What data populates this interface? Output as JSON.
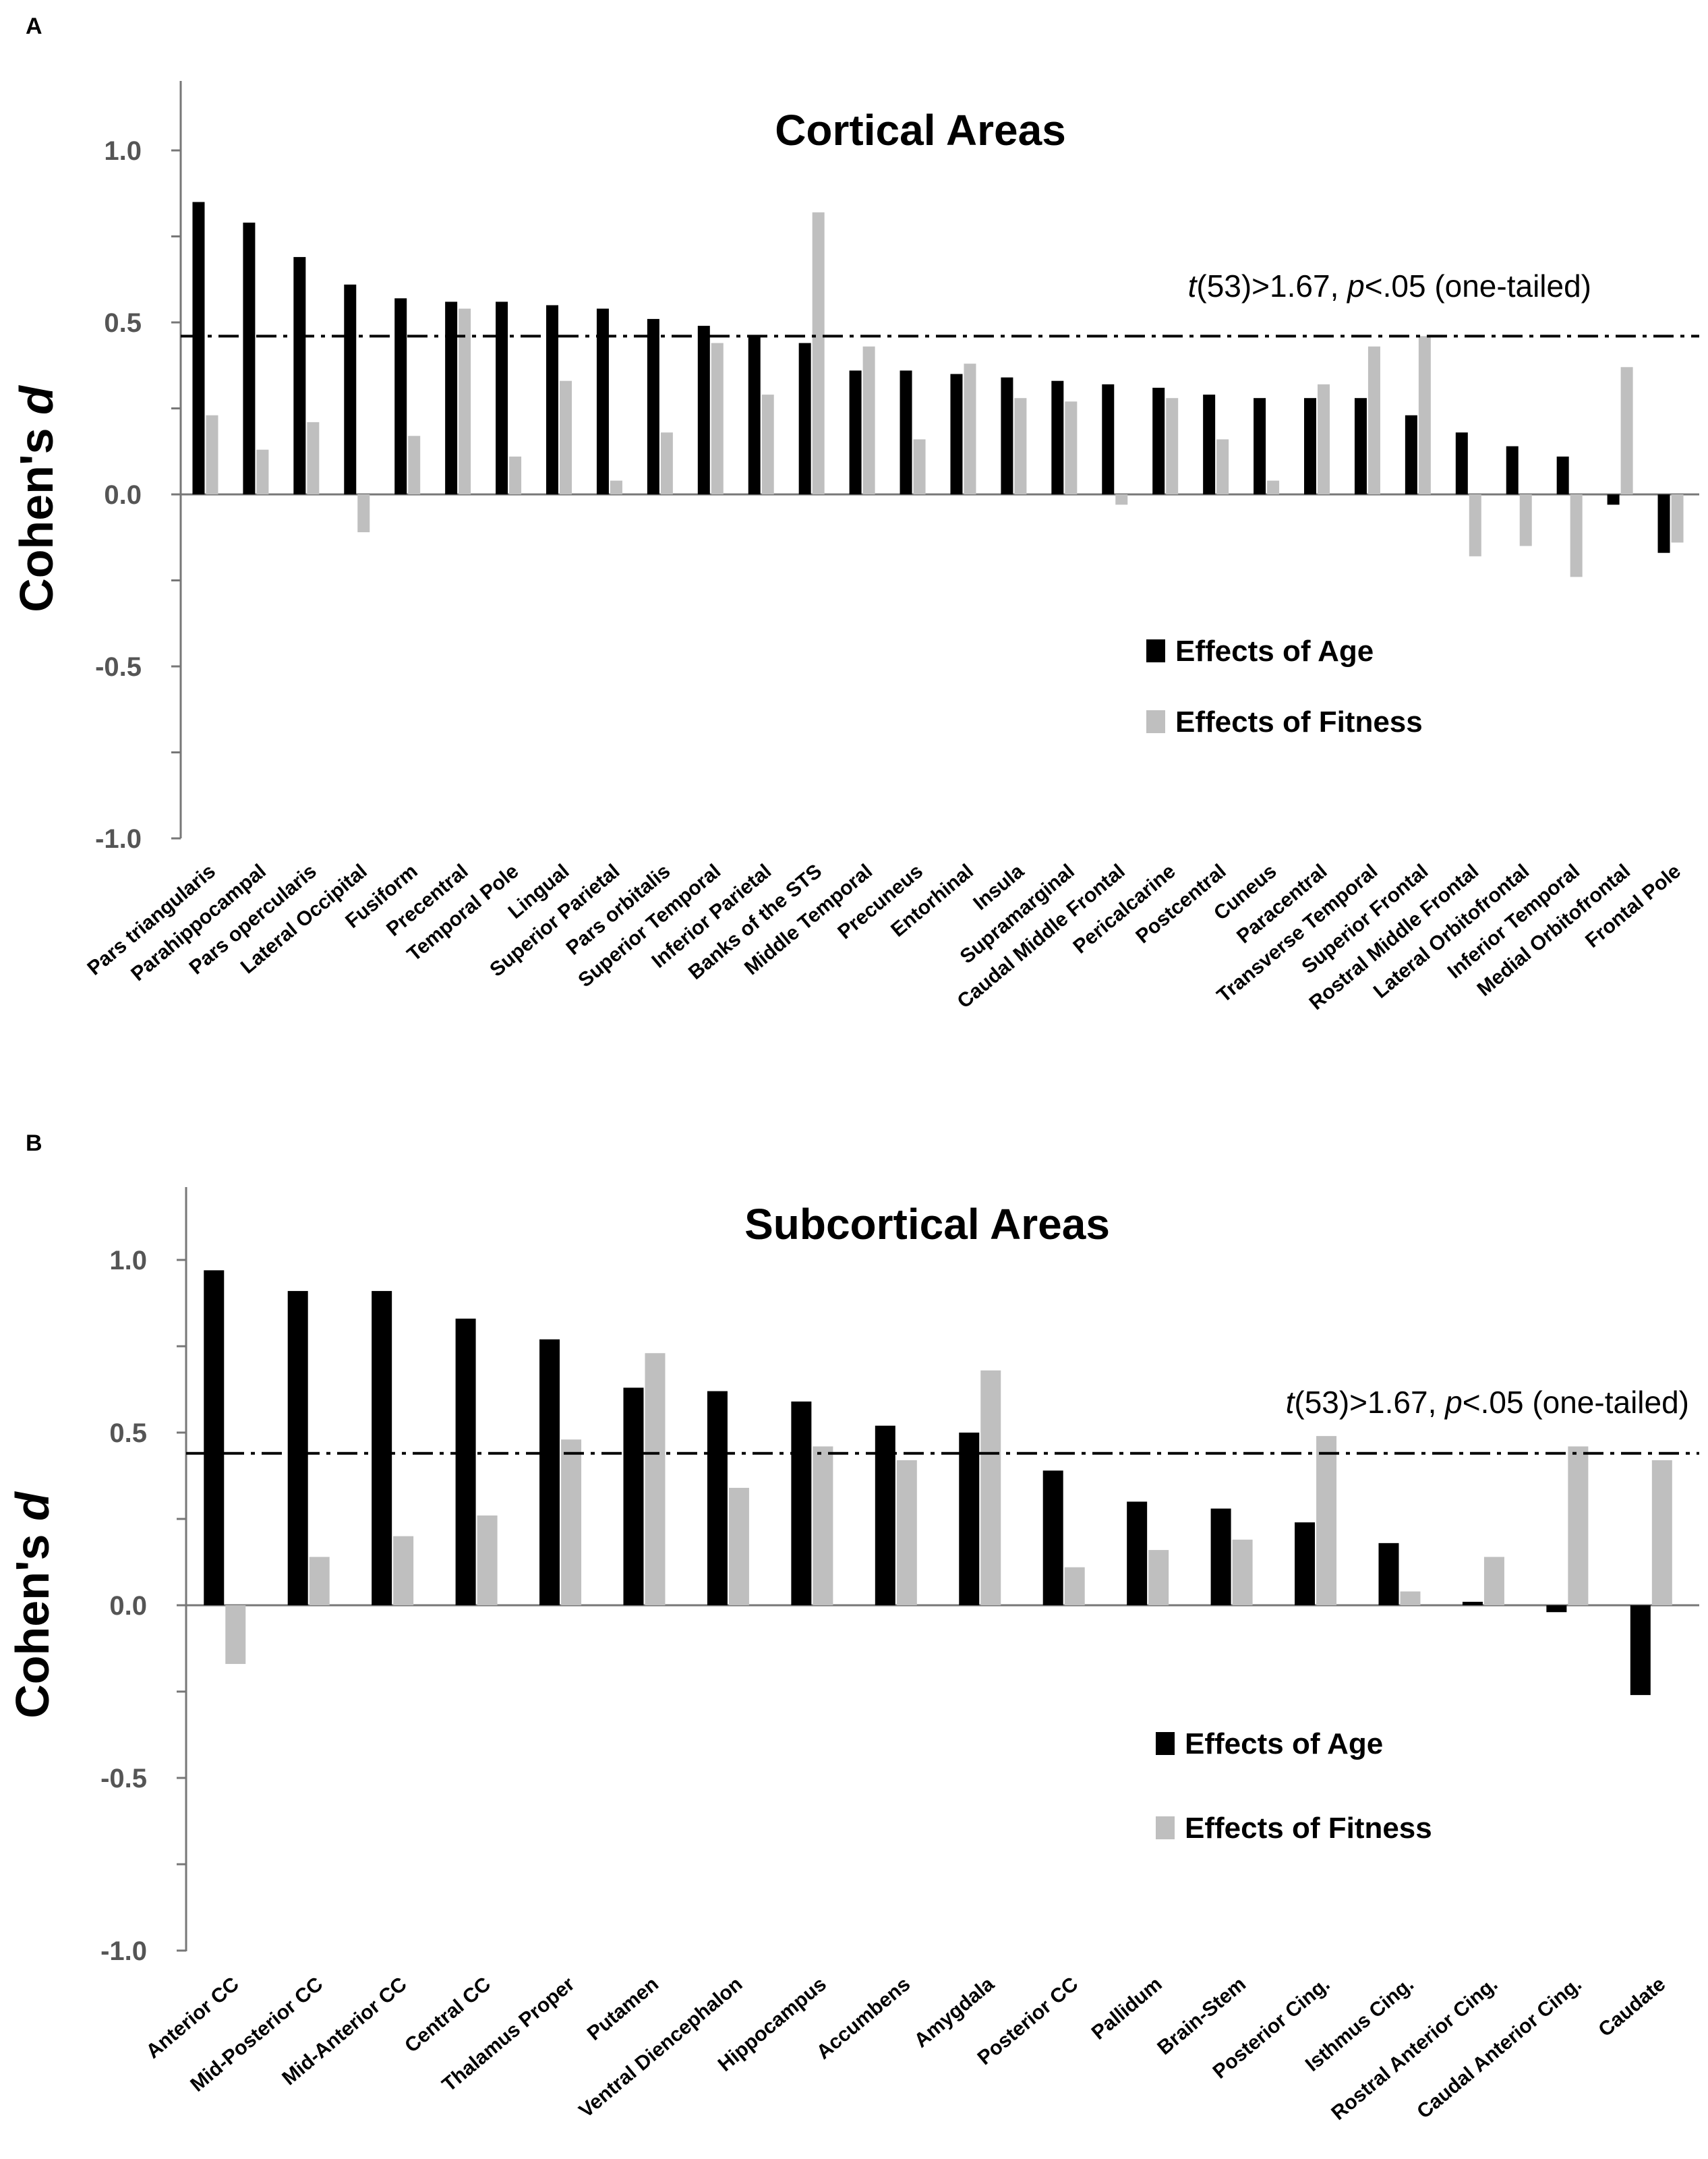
{
  "colors": {
    "age": "#000000",
    "fitness": "#bfbfbf",
    "axis": "#777777",
    "tick_text": "#555555"
  },
  "chart_data": [
    {
      "panel": "A",
      "type": "bar",
      "title": "Cortical Areas",
      "ylabel": "Cohen's",
      "ylabel_italic": "d",
      "ylim": [
        -1.0,
        1.2
      ],
      "yticks": [
        "1.0",
        "0.5",
        "0.0",
        "-0.5",
        "-1.0"
      ],
      "ytick_values": [
        1.0,
        0.5,
        0.0,
        -0.5,
        -1.0
      ],
      "threshold": {
        "value": 0.46,
        "label_prefix_italic": "t",
        "label_mid": "(53)>1.67, ",
        "label_p_italic": "p",
        "label_suffix": "<.05 (one-tailed)"
      },
      "legend": {
        "placement": "right-center",
        "entries": [
          "Effects of Age",
          "Effects of Fitness"
        ]
      },
      "categories": [
        "Pars triangularis",
        "Parahippocampal",
        "Pars opercularis",
        "Lateral Occipital",
        "Fusiform",
        "Precentral",
        "Temporal Pole",
        "Lingual",
        "Superior Parietal",
        "Pars orbitalis",
        "Superior Temporal",
        "Inferior Parietal",
        "Banks of the STS",
        "Middle Temporal",
        "Precuneus",
        "Entorhinal",
        "Insula",
        "Supramarginal",
        "Caudal Middle Frontal",
        "Pericalcarine",
        "Postcentral",
        "Cuneus",
        "Paracentral",
        "Transverse Temporal",
        "Superior Frontal",
        "Rostral Middle Frontal",
        "Lateral Orbitofrontal",
        "Inferior Temporal",
        "Medial Orbitofrontal",
        "Frontal Pole"
      ],
      "series": [
        {
          "name": "Effects of Age",
          "values": [
            0.85,
            0.79,
            0.69,
            0.61,
            0.57,
            0.56,
            0.56,
            0.55,
            0.54,
            0.51,
            0.49,
            0.46,
            0.44,
            0.36,
            0.36,
            0.35,
            0.34,
            0.33,
            0.32,
            0.31,
            0.29,
            0.28,
            0.28,
            0.28,
            0.23,
            0.18,
            0.14,
            0.11,
            -0.03,
            -0.17
          ]
        },
        {
          "name": "Effects of Fitness",
          "values": [
            0.23,
            0.13,
            0.21,
            -0.11,
            0.17,
            0.54,
            0.11,
            0.33,
            0.04,
            0.18,
            0.44,
            0.29,
            0.82,
            0.43,
            0.16,
            0.38,
            0.28,
            0.27,
            -0.03,
            0.28,
            0.16,
            0.04,
            0.32,
            0.43,
            0.46,
            -0.18,
            -0.15,
            -0.24,
            0.37,
            -0.14
          ]
        }
      ]
    },
    {
      "panel": "B",
      "type": "bar",
      "title": "Subcortical Areas",
      "ylabel": "Cohen's",
      "ylabel_italic": "d",
      "ylim": [
        -1.0,
        1.2
      ],
      "yticks": [
        "1.0",
        "0.5",
        "0.0",
        "-0.5",
        "-1.0"
      ],
      "ytick_values": [
        1.0,
        0.5,
        0.0,
        -0.5,
        -1.0
      ],
      "threshold": {
        "value": 0.44,
        "label_prefix_italic": "t",
        "label_mid": "(53)>1.67, ",
        "label_p_italic": "p",
        "label_suffix": "<.05 (one-tailed)"
      },
      "legend": {
        "placement": "right-center",
        "entries": [
          "Effects of Age",
          "Effects of Fitness"
        ]
      },
      "categories": [
        "Anterior CC",
        "Mid-Posterior CC",
        "Mid-Anterior CC",
        "Central CC",
        "Thalamus Proper",
        "Putamen",
        "Ventral Diencephalon",
        "Hippocampus",
        "Accumbens",
        "Amygdala",
        "Posterior CC",
        "Pallidum",
        "Brain-Stem",
        "Posterior Cing.",
        "Isthmus  Cing.",
        "Rostral Anterior Cing.",
        "Caudal Anterior Cing.",
        "Caudate"
      ],
      "series": [
        {
          "name": "Effects of Age",
          "values": [
            0.97,
            0.91,
            0.91,
            0.83,
            0.77,
            0.63,
            0.62,
            0.59,
            0.52,
            0.5,
            0.39,
            0.3,
            0.28,
            0.24,
            0.18,
            0.01,
            -0.02,
            -0.26
          ]
        },
        {
          "name": "Effects of Fitness",
          "values": [
            -0.17,
            0.14,
            0.2,
            0.26,
            0.48,
            0.73,
            0.34,
            0.46,
            0.42,
            0.68,
            0.11,
            0.16,
            0.19,
            0.49,
            0.04,
            0.14,
            0.46,
            0.42
          ]
        }
      ]
    }
  ]
}
